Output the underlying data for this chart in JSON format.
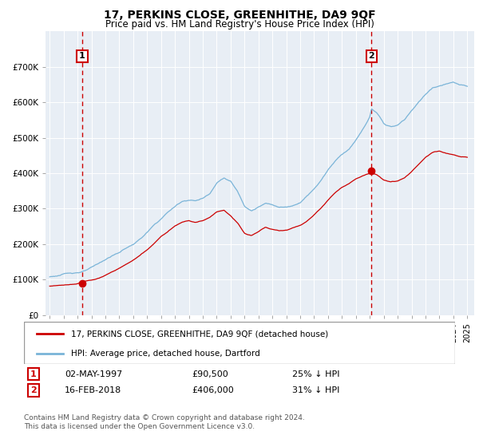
{
  "title": "17, PERKINS CLOSE, GREENHITHE, DA9 9QF",
  "subtitle": "Price paid vs. HM Land Registry's House Price Index (HPI)",
  "legend_line1": "17, PERKINS CLOSE, GREENHITHE, DA9 9QF (detached house)",
  "legend_line2": "HPI: Average price, detached house, Dartford",
  "sale1_date": "02-MAY-1997",
  "sale1_price": 90500,
  "sale1_label": "25% ↓ HPI",
  "sale2_date": "16-FEB-2018",
  "sale2_price": 406000,
  "sale2_label": "31% ↓ HPI",
  "footnote": "Contains HM Land Registry data © Crown copyright and database right 2024.\nThis data is licensed under the Open Government Licence v3.0.",
  "hpi_color": "#7ab4d8",
  "sale_color": "#cc0000",
  "vline_color": "#cc0000",
  "background_color": "#e8eef5",
  "grid_color": "#c8d4e0",
  "ylim": [
    0,
    800000
  ],
  "yticks": [
    0,
    100000,
    200000,
    300000,
    400000,
    500000,
    600000,
    700000
  ],
  "ylabels": [
    "£0",
    "£100K",
    "£200K",
    "£300K",
    "£400K",
    "£500K",
    "£600K",
    "£700K"
  ],
  "xmin": 1994.7,
  "xmax": 2025.5,
  "sale1_year": 1997.33,
  "sale2_year": 2018.12,
  "hpi_segments": [
    [
      1995.0,
      105000
    ],
    [
      1995.5,
      108000
    ],
    [
      1996.0,
      112000
    ],
    [
      1996.5,
      115000
    ],
    [
      1997.0,
      118000
    ],
    [
      1997.5,
      122000
    ],
    [
      1998.0,
      130000
    ],
    [
      1998.5,
      140000
    ],
    [
      1999.0,
      152000
    ],
    [
      1999.5,
      163000
    ],
    [
      2000.0,
      172000
    ],
    [
      2000.5,
      185000
    ],
    [
      2001.0,
      195000
    ],
    [
      2001.5,
      210000
    ],
    [
      2002.0,
      228000
    ],
    [
      2002.5,
      248000
    ],
    [
      2003.0,
      265000
    ],
    [
      2003.5,
      285000
    ],
    [
      2004.0,
      300000
    ],
    [
      2004.5,
      315000
    ],
    [
      2005.0,
      320000
    ],
    [
      2005.5,
      318000
    ],
    [
      2006.0,
      325000
    ],
    [
      2006.5,
      340000
    ],
    [
      2007.0,
      370000
    ],
    [
      2007.5,
      385000
    ],
    [
      2008.0,
      375000
    ],
    [
      2008.5,
      345000
    ],
    [
      2009.0,
      305000
    ],
    [
      2009.5,
      295000
    ],
    [
      2010.0,
      305000
    ],
    [
      2010.5,
      315000
    ],
    [
      2011.0,
      310000
    ],
    [
      2011.5,
      305000
    ],
    [
      2012.0,
      305000
    ],
    [
      2012.5,
      310000
    ],
    [
      2013.0,
      320000
    ],
    [
      2013.5,
      340000
    ],
    [
      2014.0,
      360000
    ],
    [
      2014.5,
      385000
    ],
    [
      2015.0,
      415000
    ],
    [
      2015.5,
      440000
    ],
    [
      2016.0,
      460000
    ],
    [
      2016.5,
      475000
    ],
    [
      2017.0,
      500000
    ],
    [
      2017.5,
      530000
    ],
    [
      2018.0,
      565000
    ],
    [
      2018.12,
      588000
    ],
    [
      2018.5,
      575000
    ],
    [
      2019.0,
      545000
    ],
    [
      2019.5,
      535000
    ],
    [
      2020.0,
      540000
    ],
    [
      2020.5,
      555000
    ],
    [
      2021.0,
      580000
    ],
    [
      2021.5,
      605000
    ],
    [
      2022.0,
      625000
    ],
    [
      2022.5,
      645000
    ],
    [
      2023.0,
      650000
    ],
    [
      2023.5,
      655000
    ],
    [
      2024.0,
      658000
    ],
    [
      2024.5,
      650000
    ],
    [
      2025.0,
      645000
    ]
  ],
  "red_segments": [
    [
      1995.0,
      78000
    ],
    [
      1995.5,
      79000
    ],
    [
      1996.0,
      80000
    ],
    [
      1996.5,
      82000
    ],
    [
      1997.0,
      85000
    ],
    [
      1997.33,
      90500
    ],
    [
      1997.5,
      92000
    ],
    [
      1998.0,
      96000
    ],
    [
      1998.5,
      100000
    ],
    [
      1999.0,
      108000
    ],
    [
      1999.5,
      118000
    ],
    [
      2000.0,
      128000
    ],
    [
      2000.5,
      138000
    ],
    [
      2001.0,
      150000
    ],
    [
      2001.5,
      163000
    ],
    [
      2002.0,
      178000
    ],
    [
      2002.5,
      195000
    ],
    [
      2003.0,
      215000
    ],
    [
      2003.5,
      232000
    ],
    [
      2004.0,
      248000
    ],
    [
      2004.5,
      260000
    ],
    [
      2005.0,
      265000
    ],
    [
      2005.5,
      260000
    ],
    [
      2006.0,
      265000
    ],
    [
      2006.5,
      275000
    ],
    [
      2007.0,
      290000
    ],
    [
      2007.5,
      295000
    ],
    [
      2008.0,
      280000
    ],
    [
      2008.5,
      260000
    ],
    [
      2009.0,
      230000
    ],
    [
      2009.5,
      225000
    ],
    [
      2010.0,
      235000
    ],
    [
      2010.5,
      248000
    ],
    [
      2011.0,
      242000
    ],
    [
      2011.5,
      238000
    ],
    [
      2012.0,
      240000
    ],
    [
      2012.5,
      248000
    ],
    [
      2013.0,
      255000
    ],
    [
      2013.5,
      268000
    ],
    [
      2014.0,
      285000
    ],
    [
      2014.5,
      305000
    ],
    [
      2015.0,
      328000
    ],
    [
      2015.5,
      350000
    ],
    [
      2016.0,
      365000
    ],
    [
      2016.5,
      375000
    ],
    [
      2017.0,
      388000
    ],
    [
      2017.5,
      398000
    ],
    [
      2018.0,
      405000
    ],
    [
      2018.12,
      406000
    ],
    [
      2018.5,
      400000
    ],
    [
      2019.0,
      385000
    ],
    [
      2019.5,
      380000
    ],
    [
      2020.0,
      382000
    ],
    [
      2020.5,
      390000
    ],
    [
      2021.0,
      408000
    ],
    [
      2021.5,
      428000
    ],
    [
      2022.0,
      448000
    ],
    [
      2022.5,
      462000
    ],
    [
      2023.0,
      465000
    ],
    [
      2023.5,
      458000
    ],
    [
      2024.0,
      455000
    ],
    [
      2024.5,
      450000
    ],
    [
      2025.0,
      448000
    ]
  ]
}
